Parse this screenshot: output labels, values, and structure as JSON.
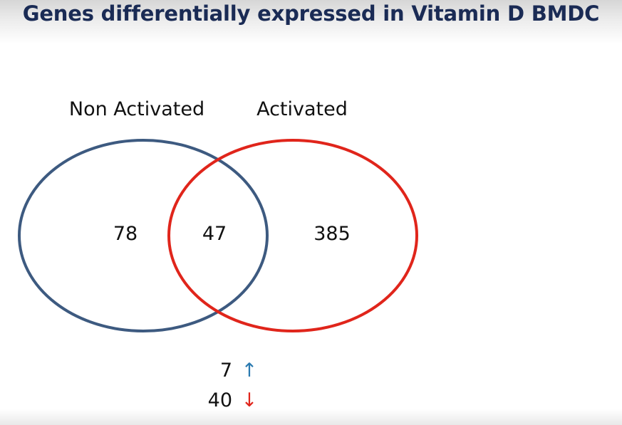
{
  "title": "Genes differentially expressed in Vitamin D BMDC",
  "sets": {
    "left": {
      "label": "Non Activated",
      "only_count": "78",
      "color": "#3d5a80"
    },
    "right": {
      "label": "Activated",
      "only_count": "385",
      "color": "#e0251b"
    }
  },
  "overlap": {
    "count": "47",
    "up": {
      "count": "7",
      "arrow": "↑",
      "color": "#2a7ab0"
    },
    "down": {
      "count": "40",
      "arrow": "↓",
      "color": "#e0251b"
    }
  }
}
